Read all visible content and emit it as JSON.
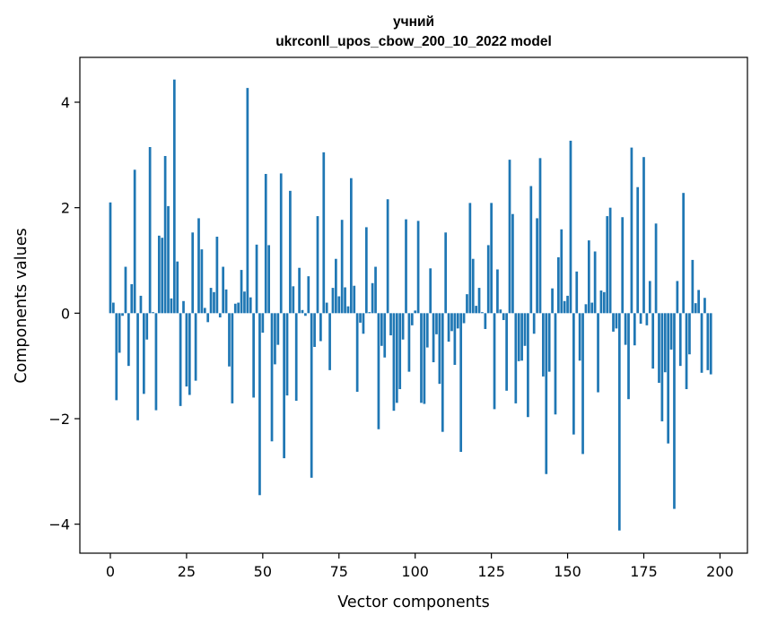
{
  "chart_data": {
    "type": "bar",
    "title_line1": "учний",
    "title_line2": "ukrconll_upos_cbow_200_10_2022 model",
    "xlabel": "Vector components",
    "ylabel": "Components values",
    "xlim": [
      -10,
      209
    ],
    "ylim": [
      -4.55,
      4.85
    ],
    "x_ticks": [
      0,
      25,
      50,
      75,
      100,
      125,
      150,
      175,
      200
    ],
    "x_tick_labels": [
      "0",
      "25",
      "50",
      "75",
      "100",
      "125",
      "150",
      "175",
      "200"
    ],
    "y_ticks": [
      -4,
      -2,
      0,
      2,
      4
    ],
    "y_tick_labels": [
      "−4",
      "−2",
      "0",
      "2",
      "4"
    ],
    "bar_color": "#1f77b4",
    "values": [
      2.1,
      0.2,
      -1.65,
      -0.75,
      -0.05,
      0.88,
      -1.0,
      0.55,
      2.72,
      -2.03,
      0.33,
      -1.53,
      -0.5,
      3.15,
      0.02,
      -1.84,
      1.47,
      1.43,
      2.98,
      2.03,
      0.28,
      4.43,
      0.98,
      -1.76,
      0.23,
      -1.39,
      -1.55,
      1.53,
      -1.28,
      1.8,
      1.21,
      0.1,
      -0.17,
      0.48,
      0.4,
      1.45,
      -0.08,
      0.88,
      0.45,
      -1.01,
      -1.71,
      0.18,
      0.2,
      0.82,
      0.41,
      4.27,
      0.3,
      -1.6,
      1.3,
      -3.45,
      -0.37,
      2.64,
      1.29,
      -2.43,
      -0.97,
      -0.6,
      2.65,
      -2.75,
      -1.56,
      2.32,
      0.51,
      -1.66,
      0.86,
      0.06,
      -0.05,
      0.7,
      -3.12,
      -0.64,
      1.84,
      -0.53,
      3.05,
      0.2,
      -1.08,
      0.48,
      1.03,
      0.32,
      1.77,
      0.49,
      0.13,
      2.56,
      0.52,
      -1.49,
      -0.18,
      -0.39,
      1.63,
      0.02,
      0.57,
      0.88,
      -2.2,
      -0.62,
      -0.84,
      2.16,
      -0.42,
      -1.85,
      -1.7,
      -1.44,
      -0.5,
      1.78,
      -1.11,
      -0.23,
      0.05,
      1.75,
      -1.7,
      -1.72,
      -0.65,
      0.85,
      -0.93,
      -0.4,
      -1.34,
      -2.25,
      1.53,
      -0.54,
      -0.34,
      -0.98,
      -0.29,
      -2.63,
      -0.19,
      0.36,
      2.09,
      1.03,
      0.14,
      0.48,
      0.02,
      -0.3,
      1.29,
      2.09,
      -1.82,
      0.83,
      0.07,
      -0.13,
      -1.47,
      2.91,
      1.88,
      -1.71,
      -0.91,
      -0.9,
      -0.62,
      -1.97,
      2.41,
      -0.39,
      1.8,
      2.94,
      -1.2,
      -3.05,
      -1.11,
      0.47,
      -1.92,
      1.06,
      1.59,
      0.23,
      0.33,
      3.27,
      -2.3,
      0.79,
      -0.9,
      -2.67,
      0.17,
      1.38,
      0.2,
      1.17,
      -1.5,
      0.43,
      0.4,
      1.84,
      2.0,
      -0.35,
      -0.29,
      -4.12,
      1.82,
      -0.6,
      -1.63,
      3.14,
      -0.61,
      2.39,
      -0.2,
      2.96,
      -0.23,
      0.61,
      -1.05,
      1.7,
      -1.32,
      -2.05,
      -1.12,
      -2.47,
      -0.69,
      -3.71,
      0.61,
      -1.0,
      2.28,
      -1.44,
      -0.78,
      1.01,
      0.19,
      0.44,
      -1.13,
      0.29,
      -1.08,
      -1.16
    ]
  }
}
